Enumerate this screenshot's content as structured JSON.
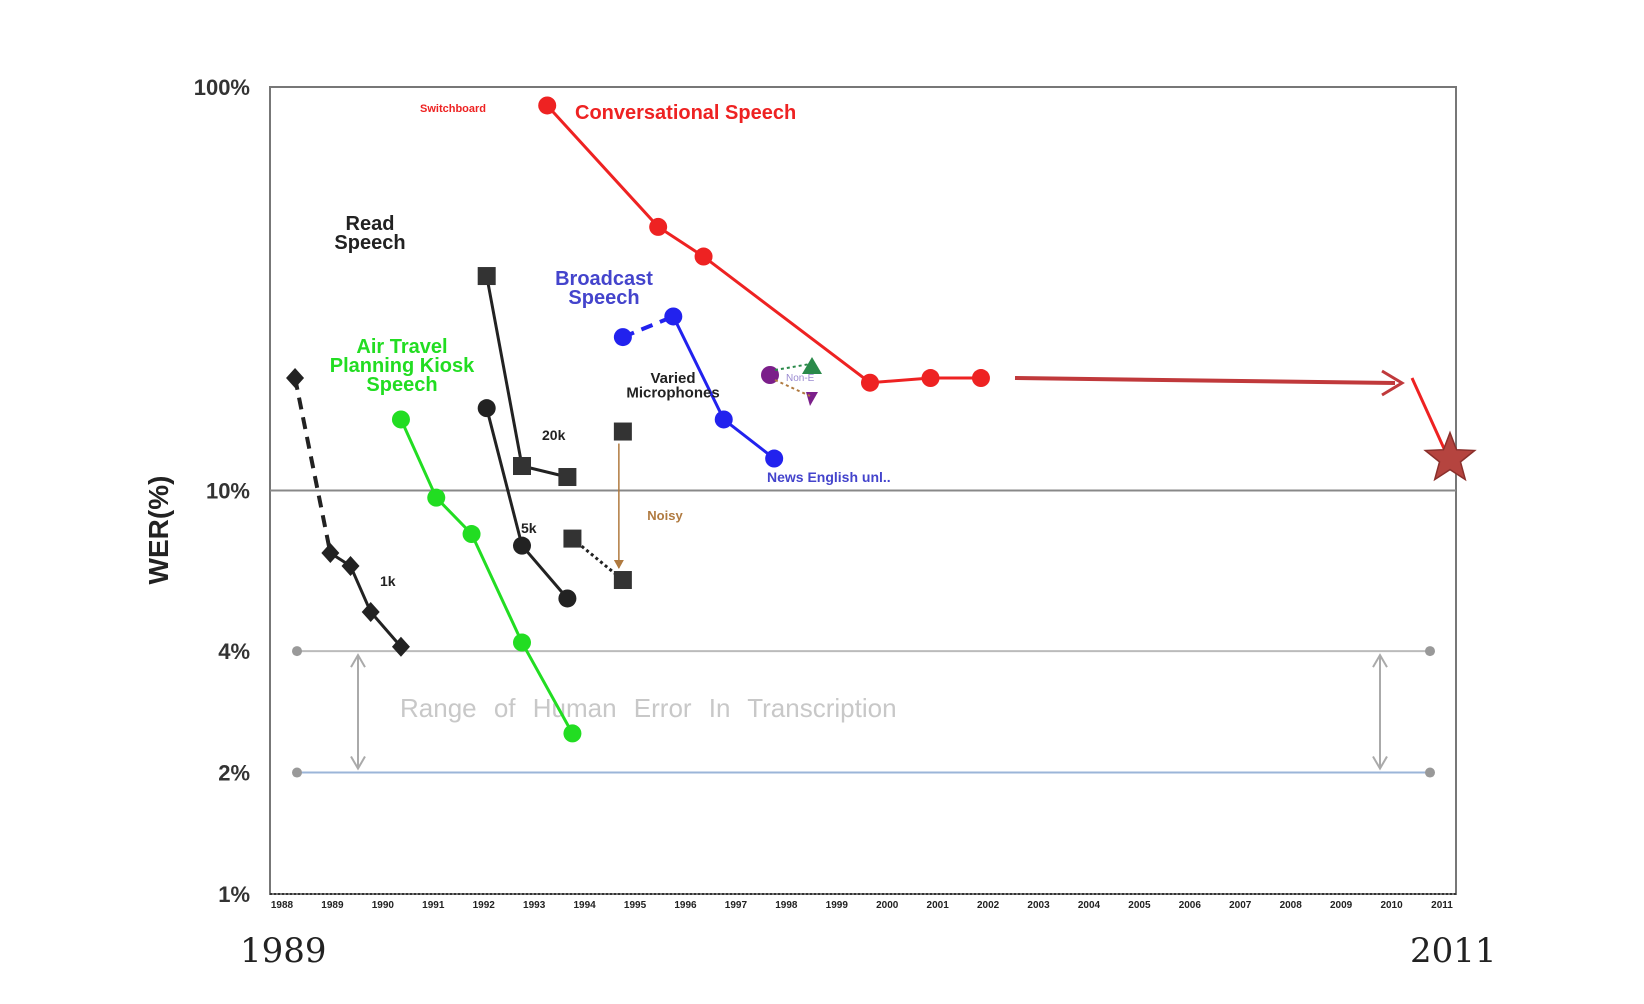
{
  "chart_data": {
    "type": "line",
    "title": "",
    "ylabel": "WER(%)",
    "yscale": "log",
    "ylim": [
      1,
      100
    ],
    "xlim": [
      1988,
      2011
    ],
    "y_ticks": [
      {
        "value": 100,
        "label": "100%"
      },
      {
        "value": 10,
        "label": "10%"
      },
      {
        "value": 4,
        "label": "4%"
      },
      {
        "value": 2,
        "label": "2%"
      },
      {
        "value": 1,
        "label": "1%"
      }
    ],
    "x_tick_labels": [
      "1988",
      "1989",
      "1990",
      "1991",
      "1992",
      "1993",
      "1994",
      "1995",
      "1996",
      "1997",
      "1998",
      "1999",
      "2000",
      "2001",
      "2002",
      "2003",
      "2004",
      "2005",
      "2006",
      "2007",
      "2008",
      "2009",
      "2010",
      "2011"
    ],
    "year_labels": {
      "start": "1989",
      "end": "2011"
    },
    "human_range": {
      "label": "Range of Human Error In Transcription",
      "low": 2,
      "high": 4
    },
    "series": [
      {
        "name": "Read Speech 1k",
        "color": "#222222",
        "marker": "diamond",
        "points": [
          [
            1988.1,
            19
          ],
          [
            1988.8,
            7.0
          ],
          [
            1989.2,
            6.5
          ],
          [
            1989.6,
            5.0
          ],
          [
            1990.2,
            4.1
          ]
        ]
      },
      {
        "name": "Read Speech 5k",
        "color": "#222222",
        "marker": "circle",
        "points": [
          [
            1991.9,
            16
          ],
          [
            1992.6,
            7.3
          ],
          [
            1993.5,
            5.4
          ]
        ]
      },
      {
        "name": "Read Speech 20k",
        "color": "#222222",
        "marker": "square",
        "points": [
          [
            1991.9,
            34
          ],
          [
            1992.6,
            11.5
          ],
          [
            1993.5,
            10.8
          ]
        ]
      },
      {
        "name": "Air Travel Planning Kiosk Speech",
        "color": "#22dd22",
        "marker": "circle",
        "points": [
          [
            1990.2,
            15
          ],
          [
            1990.9,
            9.6
          ],
          [
            1991.6,
            7.8
          ],
          [
            1992.6,
            4.2
          ],
          [
            1993.6,
            2.5
          ]
        ]
      },
      {
        "name": "Varied Microphones",
        "color": "#222222",
        "marker": "square",
        "points": [
          [
            1993.6,
            7.6
          ],
          [
            1994.6,
            6.0
          ]
        ]
      },
      {
        "name": "Noisy",
        "color": "#b07a40",
        "marker": "square",
        "points": [
          [
            1994.6,
            14
          ]
        ]
      },
      {
        "name": "Broadcast Speech",
        "color": "#2222ee",
        "marker": "circle",
        "points": [
          [
            1994.6,
            24
          ],
          [
            1995.6,
            27
          ],
          [
            1996.6,
            15
          ],
          [
            1997.6,
            12
          ]
        ]
      },
      {
        "name": "Conversational Speech",
        "color": "#ee2222",
        "marker": "circle",
        "points": [
          [
            1993.1,
            90
          ],
          [
            1995.3,
            45
          ],
          [
            1996.2,
            38
          ],
          [
            1999.5,
            18.5
          ],
          [
            2000.7,
            19
          ],
          [
            2001.7,
            19
          ]
        ]
      }
    ],
    "annotations": {
      "read_speech": "Read\nSpeech",
      "air_travel": "Air Travel\nPlanning Kiosk\nSpeech",
      "varied": "Varied\nMicrophones",
      "broadcast": "Broadcast\nSpeech",
      "conversational": "Conversational Speech",
      "switchboard": "Switchboard",
      "k1": "1k",
      "k5": "5k",
      "k20": "20k",
      "noisy": "Noisy",
      "news": "News English unl..",
      "nonenglish": "Non-E"
    },
    "target_2011": 12,
    "colors": {
      "red": "#ee2222",
      "dark_red": "#c0393b",
      "star": "#b5443f",
      "blue": "#2222ee",
      "green": "#22dd22",
      "black": "#222222",
      "grey": "#aaaaaa"
    }
  }
}
